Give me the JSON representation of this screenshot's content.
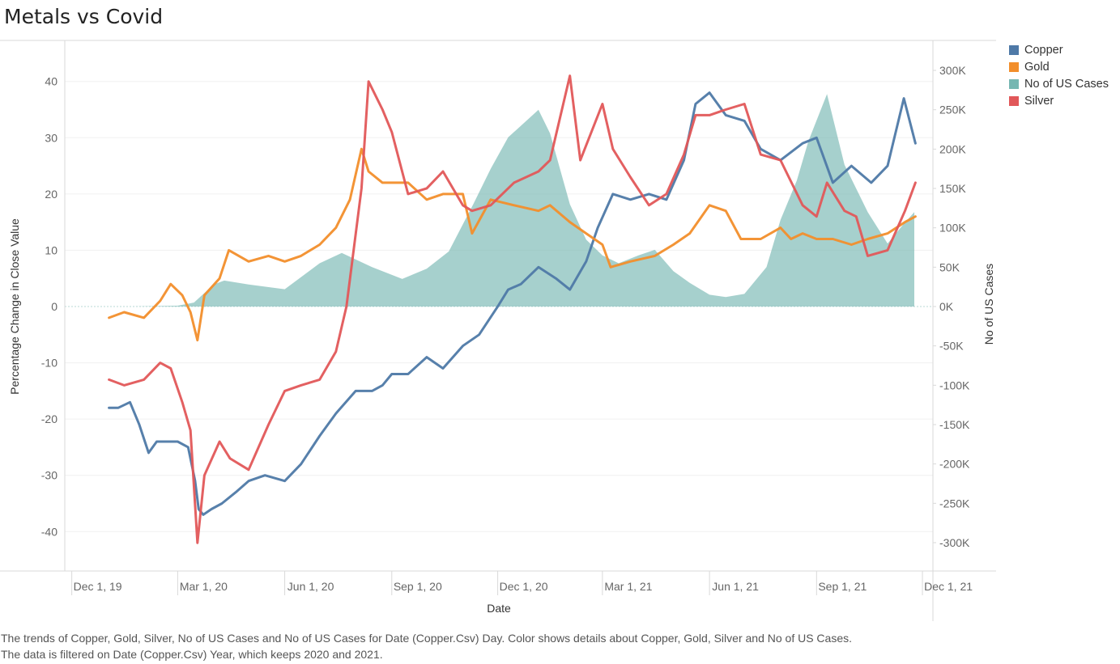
{
  "title": "Metals vs Covid",
  "caption": [
    "The trends of Copper, Gold, Silver, No of US Cases and No of US Cases for Date (Copper.Csv) Day.  Color shows details about Copper, Gold, Silver and No of US Cases.",
    "The data is filtered on Date (Copper.Csv) Year, which keeps 2020 and 2021."
  ],
  "legend": [
    {
      "name": "Copper",
      "color": "#4e79a7"
    },
    {
      "name": "Gold",
      "color": "#f28e2b"
    },
    {
      "name": "No of US Cases",
      "color": "#76b7b2"
    },
    {
      "name": "Silver",
      "color": "#e15759"
    }
  ],
  "chart_data": {
    "type": "line",
    "xlabel": "Date",
    "ylabel": "Percentage Change in Close Value",
    "y2label": "No of US Cases",
    "x_ticks": [
      "Dec 1, 19",
      "Mar 1, 20",
      "Jun 1, 20",
      "Sep 1, 20",
      "Dec 1, 20",
      "Mar 1, 21",
      "Jun 1, 21",
      "Sep 1, 21",
      "Dec 1, 21"
    ],
    "x_tick_dates": [
      "2019-12-01",
      "2020-03-01",
      "2020-06-01",
      "2020-09-01",
      "2020-12-01",
      "2021-03-01",
      "2021-06-01",
      "2021-09-01",
      "2021-12-01"
    ],
    "xlim": [
      "2019-11-25",
      "2021-12-10"
    ],
    "ylim": [
      -47,
      47
    ],
    "y_ticks": [
      40,
      30,
      20,
      10,
      0,
      -10,
      -20,
      -30,
      -40
    ],
    "y2lim": [
      -336000,
      336000
    ],
    "y2_ticks": [
      300000,
      250000,
      200000,
      150000,
      100000,
      50000,
      0,
      -50000,
      -100000,
      -150000,
      -200000,
      -250000,
      -300000
    ],
    "y2_tick_labels": [
      "300K",
      "250K",
      "200K",
      "150K",
      "100K",
      "50K",
      "0K",
      "-50K",
      "-100K",
      "-150K",
      "-200K",
      "-250K",
      "-300K"
    ],
    "series": [
      {
        "name": "Copper",
        "axis": "left",
        "color": "#4e79a7",
        "x": [
          "2020-01-02",
          "2020-01-10",
          "2020-01-20",
          "2020-01-28",
          "2020-02-05",
          "2020-02-12",
          "2020-02-20",
          "2020-03-01",
          "2020-03-10",
          "2020-03-16",
          "2020-03-19",
          "2020-03-23",
          "2020-03-30",
          "2020-04-08",
          "2020-04-20",
          "2020-05-01",
          "2020-05-15",
          "2020-06-01",
          "2020-06-15",
          "2020-07-01",
          "2020-07-15",
          "2020-08-01",
          "2020-08-15",
          "2020-08-24",
          "2020-09-01",
          "2020-09-15",
          "2020-10-01",
          "2020-10-15",
          "2020-11-01",
          "2020-11-15",
          "2020-12-01",
          "2020-12-10",
          "2020-12-21",
          "2021-01-05",
          "2021-01-20",
          "2021-02-01",
          "2021-02-15",
          "2021-02-25",
          "2021-03-10",
          "2021-03-25",
          "2021-04-10",
          "2021-04-25",
          "2021-05-10",
          "2021-05-20",
          "2021-06-01",
          "2021-06-15",
          "2021-07-01",
          "2021-07-15",
          "2021-08-01",
          "2021-08-20",
          "2021-09-01",
          "2021-09-15",
          "2021-10-01",
          "2021-10-18",
          "2021-11-01",
          "2021-11-15",
          "2021-11-25"
        ],
        "y": [
          -18,
          -18,
          -17,
          -21,
          -26,
          -24,
          -24,
          -24,
          -25,
          -31,
          -36,
          -37,
          -36,
          -35,
          -33,
          -31,
          -30,
          -31,
          -28,
          -23,
          -19,
          -15,
          -15,
          -14,
          -12,
          -12,
          -9,
          -11,
          -7,
          -5,
          0,
          3,
          4,
          7,
          5,
          3,
          8,
          14,
          20,
          19,
          20,
          19,
          26,
          36,
          38,
          34,
          33,
          28,
          26,
          29,
          30,
          22,
          25,
          22,
          25,
          37,
          29
        ]
      },
      {
        "name": "Gold",
        "axis": "left",
        "color": "#f28e2b",
        "x": [
          "2020-01-02",
          "2020-01-15",
          "2020-02-01",
          "2020-02-15",
          "2020-02-24",
          "2020-03-05",
          "2020-03-12",
          "2020-03-18",
          "2020-03-24",
          "2020-04-06",
          "2020-04-14",
          "2020-05-01",
          "2020-05-18",
          "2020-06-01",
          "2020-06-15",
          "2020-07-01",
          "2020-07-15",
          "2020-07-27",
          "2020-08-06",
          "2020-08-12",
          "2020-08-24",
          "2020-09-01",
          "2020-09-15",
          "2020-10-01",
          "2020-10-15",
          "2020-11-01",
          "2020-11-09",
          "2020-11-25",
          "2020-12-15",
          "2021-01-05",
          "2021-01-15",
          "2021-02-01",
          "2021-02-15",
          "2021-03-01",
          "2021-03-08",
          "2021-03-25",
          "2021-04-15",
          "2021-05-01",
          "2021-05-15",
          "2021-06-01",
          "2021-06-15",
          "2021-06-28",
          "2021-07-15",
          "2021-08-01",
          "2021-08-10",
          "2021-08-20",
          "2021-09-01",
          "2021-09-15",
          "2021-10-01",
          "2021-10-15",
          "2021-11-01",
          "2021-11-16",
          "2021-11-25"
        ],
        "y": [
          -2,
          -1,
          -2,
          1,
          4,
          2,
          -1,
          -6,
          2,
          5,
          10,
          8,
          9,
          8,
          9,
          11,
          14,
          19,
          28,
          24,
          22,
          22,
          22,
          19,
          20,
          20,
          13,
          19,
          18,
          17,
          18,
          15,
          13,
          11,
          7,
          8,
          9,
          11,
          13,
          18,
          17,
          12,
          12,
          14,
          12,
          13,
          12,
          12,
          11,
          12,
          13,
          15,
          16
        ]
      },
      {
        "name": "Silver",
        "axis": "left",
        "color": "#e15759",
        "x": [
          "2020-01-02",
          "2020-01-15",
          "2020-02-01",
          "2020-02-15",
          "2020-02-24",
          "2020-03-05",
          "2020-03-12",
          "2020-03-18",
          "2020-03-24",
          "2020-04-06",
          "2020-04-15",
          "2020-05-01",
          "2020-05-18",
          "2020-06-01",
          "2020-06-15",
          "2020-07-01",
          "2020-07-15",
          "2020-07-24",
          "2020-08-06",
          "2020-08-12",
          "2020-08-24",
          "2020-09-01",
          "2020-09-15",
          "2020-10-01",
          "2020-10-15",
          "2020-11-01",
          "2020-11-09",
          "2020-11-25",
          "2020-12-15",
          "2021-01-05",
          "2021-01-15",
          "2021-02-01",
          "2021-02-10",
          "2021-03-01",
          "2021-03-10",
          "2021-03-25",
          "2021-04-10",
          "2021-04-25",
          "2021-05-10",
          "2021-05-20",
          "2021-06-01",
          "2021-06-15",
          "2021-07-01",
          "2021-07-15",
          "2021-08-01",
          "2021-08-20",
          "2021-09-01",
          "2021-09-10",
          "2021-09-25",
          "2021-10-05",
          "2021-10-15",
          "2021-11-01",
          "2021-11-16",
          "2021-11-25"
        ],
        "y": [
          -13,
          -14,
          -13,
          -10,
          -11,
          -17,
          -22,
          -42,
          -30,
          -24,
          -27,
          -29,
          -21,
          -15,
          -14,
          -13,
          -8,
          0,
          21,
          40,
          35,
          31,
          20,
          21,
          24,
          18,
          17,
          18,
          22,
          24,
          26,
          41,
          26,
          36,
          28,
          23,
          18,
          20,
          27,
          34,
          34,
          35,
          36,
          27,
          26,
          18,
          16,
          22,
          17,
          16,
          9,
          10,
          17,
          22
        ]
      },
      {
        "name": "No of US Cases",
        "axis": "right",
        "color": "#76b7b2",
        "type": "area",
        "x": [
          "2020-01-22",
          "2020-03-01",
          "2020-03-15",
          "2020-04-01",
          "2020-04-10",
          "2020-05-01",
          "2020-06-01",
          "2020-07-01",
          "2020-07-20",
          "2020-08-15",
          "2020-09-10",
          "2020-10-01",
          "2020-10-20",
          "2020-11-10",
          "2020-11-25",
          "2020-12-10",
          "2021-01-05",
          "2021-01-15",
          "2021-02-01",
          "2021-02-15",
          "2021-03-01",
          "2021-03-15",
          "2021-04-01",
          "2021-04-15",
          "2021-05-01",
          "2021-05-15",
          "2021-06-01",
          "2021-06-15",
          "2021-07-01",
          "2021-07-20",
          "2021-08-01",
          "2021-08-15",
          "2021-08-25",
          "2021-09-10",
          "2021-09-25",
          "2021-10-15",
          "2021-11-01",
          "2021-11-15",
          "2021-11-24"
        ],
        "y": [
          0,
          1000,
          5000,
          28000,
          33000,
          28000,
          22000,
          55000,
          68000,
          50000,
          35000,
          48000,
          70000,
          130000,
          175000,
          215000,
          250000,
          220000,
          130000,
          85000,
          65000,
          55000,
          65000,
          72000,
          45000,
          30000,
          15000,
          12000,
          16000,
          50000,
          110000,
          160000,
          210000,
          270000,
          180000,
          120000,
          80000,
          105000,
          120000
        ]
      }
    ]
  }
}
